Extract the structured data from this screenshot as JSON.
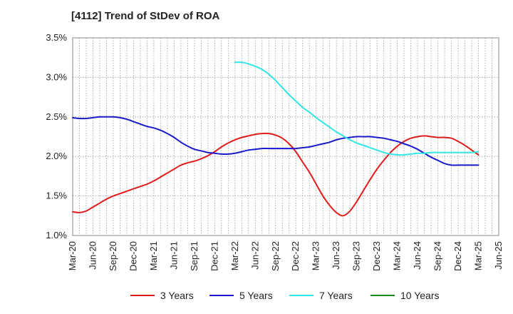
{
  "chart_data": {
    "type": "line",
    "title": "[4112]  Trend of StDev of ROA",
    "xlabel": "",
    "ylabel": "",
    "ylim": [
      1.0,
      3.5
    ],
    "y_ticks": [
      "1.0%",
      "1.5%",
      "2.0%",
      "2.5%",
      "3.0%",
      "3.5%"
    ],
    "y_tick_values": [
      1.0,
      1.5,
      2.0,
      2.5,
      3.0,
      3.5
    ],
    "x_ticks": [
      "Mar-20",
      "Jun-20",
      "Sep-20",
      "Dec-20",
      "Mar-21",
      "Jun-21",
      "Sep-21",
      "Dec-21",
      "Mar-22",
      "Jun-22",
      "Sep-22",
      "Dec-22",
      "Mar-23",
      "Jun-23",
      "Sep-23",
      "Dec-23",
      "Mar-24",
      "Jun-24",
      "Sep-24",
      "Dec-24",
      "Mar-25",
      "Jun-25"
    ],
    "x_unit": "months since Mar-20",
    "grid": true,
    "legend_position": "bottom",
    "series": [
      {
        "name": "3 Years",
        "color": "#e01b1b",
        "x": [
          0,
          1,
          2,
          3,
          4,
          5,
          6,
          7,
          8,
          9,
          10,
          11,
          12,
          13,
          14,
          15,
          16,
          17,
          18,
          19,
          20,
          21,
          22,
          23,
          24,
          25,
          26,
          27,
          28,
          29,
          30,
          31,
          32,
          33,
          34,
          35,
          36,
          37,
          38,
          39,
          40,
          41,
          42,
          43,
          44,
          45,
          46,
          47,
          48,
          49,
          50,
          51,
          52,
          53,
          54,
          55,
          56,
          57,
          58,
          59,
          60
        ],
        "values": [
          1.3,
          1.29,
          1.31,
          1.36,
          1.41,
          1.46,
          1.5,
          1.53,
          1.56,
          1.59,
          1.62,
          1.65,
          1.69,
          1.74,
          1.79,
          1.84,
          1.89,
          1.92,
          1.94,
          1.97,
          2.01,
          2.06,
          2.12,
          2.17,
          2.21,
          2.24,
          2.26,
          2.28,
          2.29,
          2.29,
          2.27,
          2.23,
          2.16,
          2.06,
          1.93,
          1.8,
          1.65,
          1.5,
          1.38,
          1.29,
          1.25,
          1.31,
          1.43,
          1.57,
          1.71,
          1.84,
          1.95,
          2.05,
          2.13,
          2.19,
          2.23,
          2.25,
          2.26,
          2.25,
          2.24,
          2.24,
          2.23,
          2.19,
          2.14,
          2.08,
          2.02
        ]
      },
      {
        "name": "5 Years",
        "color": "#1a1acc",
        "x": [
          0,
          1,
          2,
          3,
          4,
          5,
          6,
          7,
          8,
          9,
          10,
          11,
          12,
          13,
          14,
          15,
          16,
          17,
          18,
          19,
          20,
          21,
          22,
          23,
          24,
          25,
          26,
          27,
          28,
          29,
          30,
          31,
          32,
          33,
          34,
          35,
          36,
          37,
          38,
          39,
          40,
          41,
          42,
          43,
          44,
          45,
          46,
          47,
          48,
          49,
          50,
          51,
          52,
          53,
          54,
          55,
          56,
          57,
          58,
          59,
          60
        ],
        "values": [
          2.49,
          2.48,
          2.48,
          2.49,
          2.5,
          2.5,
          2.5,
          2.49,
          2.47,
          2.44,
          2.41,
          2.38,
          2.36,
          2.33,
          2.29,
          2.24,
          2.18,
          2.13,
          2.09,
          2.07,
          2.05,
          2.04,
          2.03,
          2.03,
          2.04,
          2.06,
          2.08,
          2.09,
          2.1,
          2.1,
          2.1,
          2.1,
          2.1,
          2.1,
          2.11,
          2.12,
          2.14,
          2.16,
          2.18,
          2.21,
          2.23,
          2.24,
          2.25,
          2.25,
          2.25,
          2.24,
          2.23,
          2.21,
          2.19,
          2.16,
          2.13,
          2.09,
          2.04,
          1.99,
          1.95,
          1.91,
          1.89,
          1.89,
          1.89,
          1.89,
          1.89
        ]
      },
      {
        "name": "7 Years",
        "color": "#33e6e6",
        "x": [
          24,
          25,
          26,
          27,
          28,
          29,
          30,
          31,
          32,
          33,
          34,
          35,
          36,
          37,
          38,
          39,
          40,
          41,
          42,
          43,
          44,
          45,
          46,
          47,
          48,
          49,
          50,
          51,
          52,
          53,
          54,
          55,
          56,
          57,
          58,
          59,
          60
        ],
        "values": [
          3.19,
          3.19,
          3.17,
          3.14,
          3.1,
          3.04,
          2.96,
          2.87,
          2.78,
          2.7,
          2.62,
          2.56,
          2.49,
          2.43,
          2.37,
          2.31,
          2.26,
          2.21,
          2.17,
          2.14,
          2.11,
          2.08,
          2.05,
          2.03,
          2.02,
          2.02,
          2.03,
          2.04,
          2.04,
          2.05,
          2.05,
          2.05,
          2.05,
          2.05,
          2.05,
          2.05,
          2.06
        ]
      },
      {
        "name": "10 Years",
        "color": "#1a8a1a",
        "x": [],
        "values": []
      }
    ]
  }
}
